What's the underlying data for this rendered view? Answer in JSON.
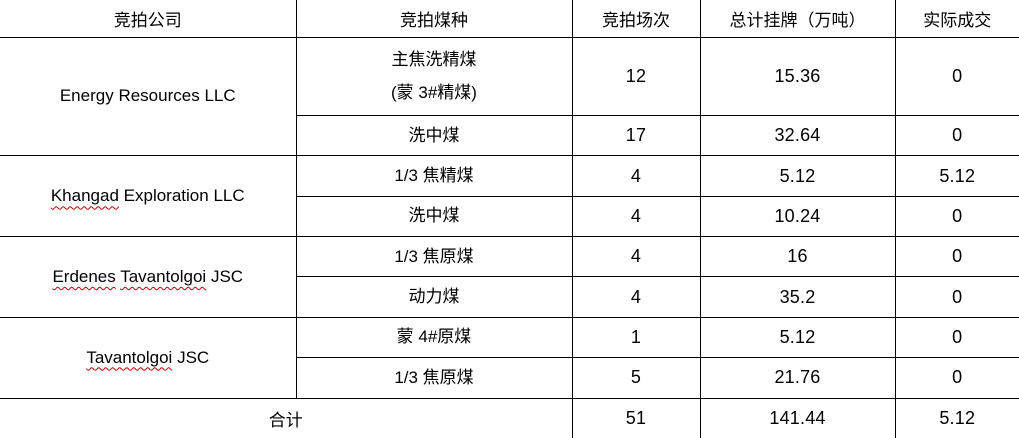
{
  "table": {
    "headers": [
      "竞拍公司",
      "竞拍煤种",
      "竞拍场次",
      "总计挂牌（万吨）",
      "实际成交"
    ],
    "border_color": "#000000",
    "spellcheck_underline_color": "#c00000",
    "sections": [
      {
        "company": "Energy Resources LLC",
        "misspelled_words": [],
        "rows": [
          {
            "coal_type_lines": [
              "主焦洗精煤",
              "(蒙 3#精煤)"
            ],
            "sessions": "12",
            "listed": "15.36",
            "dealt": "0"
          },
          {
            "coal_type_lines": [
              "洗中煤"
            ],
            "sessions": "17",
            "listed": "32.64",
            "dealt": "0"
          }
        ]
      },
      {
        "company": "Khangad Exploration LLC",
        "misspelled_words": [
          "Khangad"
        ],
        "rows": [
          {
            "coal_type_lines": [
              "1/3 焦精煤"
            ],
            "sessions": "4",
            "listed": "5.12",
            "dealt": "5.12"
          },
          {
            "coal_type_lines": [
              "洗中煤"
            ],
            "sessions": "4",
            "listed": "10.24",
            "dealt": "0"
          }
        ]
      },
      {
        "company": "Erdenes Tavantolgoi JSC",
        "misspelled_words": [
          "Erdenes",
          "Tavantolgoi"
        ],
        "rows": [
          {
            "coal_type_lines": [
              "1/3 焦原煤"
            ],
            "sessions": "4",
            "listed": "16",
            "dealt": "0"
          },
          {
            "coal_type_lines": [
              "动力煤"
            ],
            "sessions": "4",
            "listed": "35.2",
            "dealt": "0"
          }
        ]
      },
      {
        "company": "Tavantolgoi JSC",
        "misspelled_words": [
          "Tavantolgoi"
        ],
        "rows": [
          {
            "coal_type_lines": [
              "蒙 4#原煤"
            ],
            "sessions": "1",
            "listed": "5.12",
            "dealt": "0"
          },
          {
            "coal_type_lines": [
              "1/3 焦原煤"
            ],
            "sessions": "5",
            "listed": "21.76",
            "dealt": "0"
          }
        ]
      }
    ],
    "total": {
      "label": "合计",
      "sessions": "51",
      "listed": "141.44",
      "dealt": "5.12"
    }
  }
}
